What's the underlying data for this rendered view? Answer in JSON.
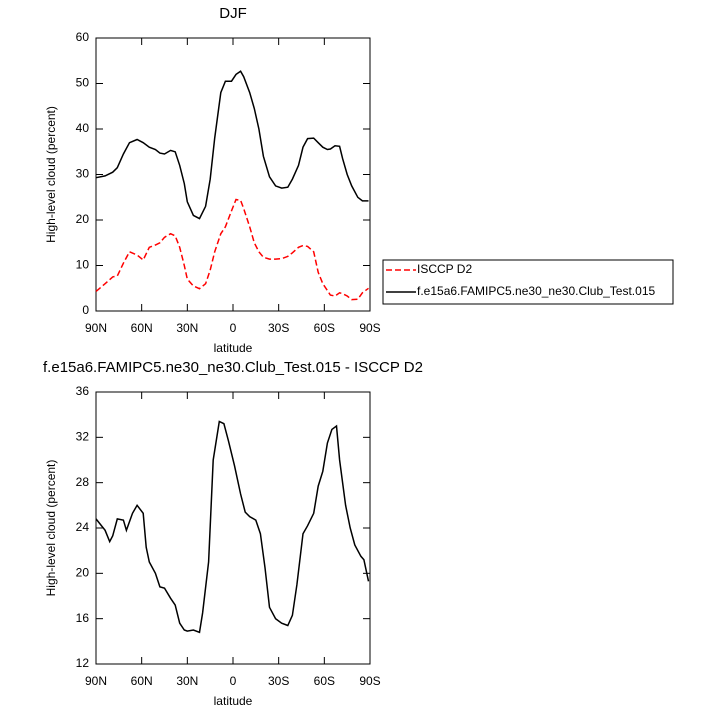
{
  "chart_data": [
    {
      "type": "line",
      "title": "DJF",
      "xlabel": "latitude",
      "ylabel": "High-level cloud (percent)",
      "x": [
        90,
        84,
        79,
        76,
        72,
        68,
        63,
        59,
        55,
        51,
        48,
        45,
        41,
        38,
        35,
        32,
        30,
        26,
        22,
        18,
        15,
        12,
        8,
        5,
        1,
        -2,
        -5,
        -7,
        -11,
        -14,
        -17,
        -20,
        -24,
        -28,
        -32,
        -36,
        -39,
        -43,
        -46,
        -49,
        -53,
        -56,
        -59,
        -62,
        -64,
        -67,
        -70,
        -72,
        -75,
        -78,
        -82,
        -85,
        -89
      ],
      "series": [
        {
          "name": "ISCCP D2",
          "color": "#ff0000",
          "dashed": true,
          "values": [
            4.3,
            6,
            7.5,
            7.7,
            10.5,
            13,
            12.3,
            11.2,
            14,
            14.5,
            15,
            16.2,
            17,
            16.5,
            14,
            10,
            7,
            5.5,
            4.9,
            6,
            9,
            13,
            17,
            18.5,
            22,
            24.5,
            24.3,
            22.5,
            18.5,
            15,
            13,
            11.8,
            11.4,
            11.4,
            11.5,
            12,
            12.8,
            14,
            14.4,
            14.2,
            13,
            8.5,
            6,
            4.5,
            3.5,
            3.3,
            4,
            3.8,
            3.3,
            2.5,
            2.6,
            4,
            5
          ]
        },
        {
          "name": "f.e15a6.FAMIPC5.ne30_ne30.Club_Test.015",
          "color": "#000000",
          "dashed": false,
          "values": [
            29.3,
            29.7,
            30.5,
            31.5,
            34.5,
            37,
            37.7,
            37,
            36,
            35.5,
            34.7,
            34.5,
            35.3,
            35,
            32,
            28,
            24,
            21,
            20.3,
            23,
            29,
            38,
            48,
            50.5,
            50.5,
            52,
            52.7,
            51.5,
            48,
            44.5,
            40,
            34,
            29.5,
            27.5,
            27,
            27.2,
            29,
            32,
            36,
            37.9,
            38,
            37,
            36,
            35.5,
            35.6,
            36.3,
            36.2,
            33.5,
            30,
            27.5,
            25,
            24.2,
            24.2
          ]
        }
      ],
      "xlim": [
        90,
        -90
      ],
      "xticks": [
        {
          "value": 90,
          "label": "90N"
        },
        {
          "value": 60,
          "label": "60N"
        },
        {
          "value": 30,
          "label": "30N"
        },
        0,
        {
          "value": -30,
          "label": "30S"
        },
        {
          "value": -60,
          "label": "60S"
        },
        {
          "value": -90,
          "label": "90S"
        }
      ],
      "ylim": [
        0,
        60
      ],
      "yticks": [
        0,
        10,
        20,
        30,
        40,
        50,
        60
      ],
      "legend": "right"
    },
    {
      "type": "line",
      "title": "f.e15a6.FAMIPC5.ne30_ne30.Club_Test.015 - ISCCP D2",
      "xlabel": "latitude",
      "ylabel": "High-level cloud (percent)",
      "x": [
        90,
        84,
        81,
        79,
        76,
        72,
        70,
        66,
        63,
        59,
        57,
        55,
        51,
        48,
        45,
        41,
        38,
        35,
        32,
        30,
        26,
        22,
        20,
        16,
        13,
        9,
        6,
        3,
        -1,
        -5,
        -8,
        -11,
        -15,
        -18,
        -21,
        -24,
        -28,
        -32,
        -36,
        -39,
        -42,
        -46,
        -49,
        -53,
        -56,
        -59,
        -62,
        -65,
        -68,
        -70,
        -74,
        -77,
        -80,
        -84,
        -86,
        -89
      ],
      "series": [
        {
          "color": "#000000",
          "dashed": false,
          "values": [
            24.8,
            23.8,
            22.8,
            23.3,
            24.8,
            24.7,
            23.8,
            25.3,
            26,
            25.3,
            22.3,
            21,
            20,
            18.8,
            18.7,
            17.8,
            17.2,
            15.6,
            15,
            14.9,
            15,
            14.8,
            16.5,
            21,
            30,
            33.4,
            33.2,
            31.7,
            29.5,
            27,
            25.4,
            25,
            24.7,
            23.5,
            20.5,
            17,
            16,
            15.6,
            15.4,
            16.3,
            19,
            23.5,
            24.2,
            25.3,
            27.7,
            29,
            31.5,
            32.7,
            33,
            30,
            26,
            24,
            22.5,
            21.5,
            21.2,
            19.3
          ]
        }
      ],
      "xlim": [
        90,
        -90
      ],
      "xticks": [
        {
          "value": 90,
          "label": "90N"
        },
        {
          "value": 60,
          "label": "60N"
        },
        {
          "value": 30,
          "label": "30N"
        },
        0,
        {
          "value": -30,
          "label": "30S"
        },
        {
          "value": -60,
          "label": "60S"
        },
        {
          "value": -90,
          "label": "90S"
        }
      ],
      "ylim": [
        12,
        36
      ],
      "yticks": [
        12,
        16,
        20,
        24,
        28,
        32,
        36
      ]
    }
  ]
}
